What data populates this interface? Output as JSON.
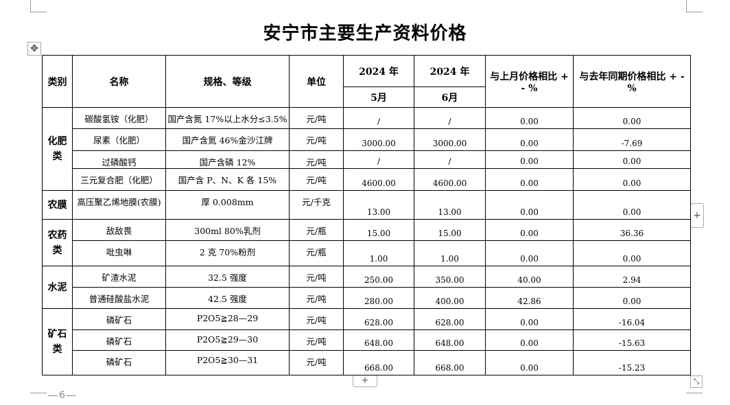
{
  "title": "安宁市主要生产资料价格",
  "page_number": "6",
  "headers": {
    "category": "类别",
    "name": "名称",
    "spec": "规格、等级",
    "unit": "单位",
    "year1": "2024 年",
    "year2": "2024 年",
    "month1": "5月",
    "month2": "6月",
    "mom": "与上月价格相比 + - %",
    "yoy": "与去年同期价格相比 + - %"
  },
  "categories": [
    {
      "label": "化肥类",
      "rows": [
        {
          "name": "碳酸氢铵（化肥）",
          "spec": "国产含氮 17%以上水分≤3.5%",
          "unit": "元/吨",
          "may": "/",
          "jun": "/",
          "mom": "0.00",
          "yoy": "0.00"
        },
        {
          "name": "尿素（化肥）",
          "spec": "国产含氮 46%金沙江牌",
          "unit": "元/吨",
          "may": "3000.00",
          "jun": "3000.00",
          "mom": "0.00",
          "yoy": "-7.69"
        },
        {
          "name": "过磷酸钙",
          "spec": "国产含磷 12%",
          "unit": "元/吨",
          "may": "/",
          "jun": "/",
          "mom": "0.00",
          "yoy": "0.00"
        },
        {
          "name": "三元复合肥（化肥）",
          "spec": "国产含 P、N、K 各 15%",
          "unit": "元/吨",
          "may": "4600.00",
          "jun": "4600.00",
          "mom": "0.00",
          "yoy": "0.00"
        }
      ]
    },
    {
      "label": "农膜",
      "rows": [
        {
          "name": "高压聚乙烯地膜(农膜)",
          "spec": "厚 0.008mm",
          "unit": "元/千克",
          "may": "13.00",
          "jun": "13.00",
          "mom": "0.00",
          "yoy": "0.00"
        }
      ]
    },
    {
      "label": "农药类",
      "rows": [
        {
          "name": "敌敌畏",
          "spec": "300ml 80%乳剂",
          "unit": "元/瓶",
          "may": "15.00",
          "jun": "15.00",
          "mom": "0.00",
          "yoy": "36.36"
        },
        {
          "name": "吡虫啉",
          "spec": "2 克 70%粉剂",
          "unit": "元/瓶",
          "may": "1.00",
          "jun": "1.00",
          "mom": "0.00",
          "yoy": "0.00"
        }
      ]
    },
    {
      "label": "水泥",
      "rows": [
        {
          "name": "矿渣水泥",
          "spec": "32.5 强度",
          "unit": "元/吨",
          "may": "250.00",
          "jun": "350.00",
          "mom": "40.00",
          "yoy": "2.94"
        },
        {
          "name": "普通硅酸盐水泥",
          "spec": "42.5 强度",
          "unit": "元/吨",
          "may": "280.00",
          "jun": "400.00",
          "mom": "42.86",
          "yoy": "0.00"
        }
      ]
    },
    {
      "label": "矿石类",
      "rows": [
        {
          "name": "磷矿石",
          "spec": "P2O5≧28—29",
          "unit": "元/吨",
          "may": "628.00",
          "jun": "628.00",
          "mom": "0.00",
          "yoy": "-16.04"
        },
        {
          "name": "磷矿石",
          "spec": "P2O5≧29—30",
          "unit": "元/吨",
          "may": "648.00",
          "jun": "648.00",
          "mom": "0.00",
          "yoy": "-15.63"
        },
        {
          "name": "磷矿石",
          "spec": "P2O5≧30—31",
          "unit": "元/吨",
          "may": "668.00",
          "jun": "668.00",
          "mom": "0.00",
          "yoy": "-15.23"
        }
      ]
    }
  ]
}
